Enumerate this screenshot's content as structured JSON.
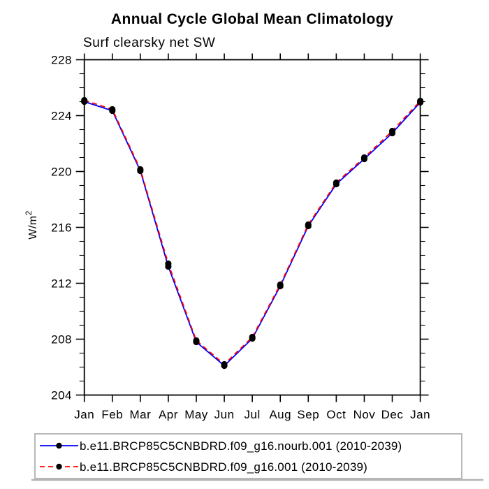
{
  "title": "Annual Cycle Global Mean Climatology",
  "subtitle": "Surf clearsky net SW",
  "y_axis_title": {
    "base": "W/m",
    "sup": "2"
  },
  "chart_data": {
    "type": "line",
    "categories": [
      "Jan",
      "Feb",
      "Mar",
      "Apr",
      "May",
      "Jun",
      "Jul",
      "Aug",
      "Sep",
      "Oct",
      "Nov",
      "Dec",
      "Jan"
    ],
    "title": "Annual Cycle Global Mean Climatology",
    "subtitle": "Surf clearsky net SW",
    "ylabel": "W/m^2",
    "xlabel": "",
    "ylim": [
      204,
      228
    ],
    "ytick_major": [
      204,
      208,
      212,
      216,
      220,
      224,
      228
    ],
    "ytick_minor_step": 1,
    "grid": false,
    "legend_position": "bottom-left-box",
    "series": [
      {
        "name": "b.e11.BRCP85C5CNBDRD.f09_g16.nourb.001 (2010-2039)",
        "color": "#0000ff",
        "line_style": "solid",
        "marker": "filled-black-circle",
        "values": [
          225.0,
          224.35,
          220.05,
          213.2,
          207.8,
          206.1,
          208.05,
          211.8,
          216.1,
          219.1,
          220.9,
          222.75,
          224.95
        ]
      },
      {
        "name": "b.e11.BRCP85C5CNBDRD.f09_g16.001 (2010-2039)",
        "color": "#ff0000",
        "line_style": "dashed",
        "marker": "filled-black-circle",
        "values": [
          225.1,
          224.45,
          220.15,
          213.4,
          207.9,
          206.2,
          208.15,
          211.9,
          216.2,
          219.2,
          221.0,
          222.9,
          225.05
        ]
      }
    ]
  },
  "colors": {
    "axis": "#000000",
    "marker": "#000000",
    "series_blue": "#0000ff",
    "series_red": "#ff0000",
    "legend_border": "#b0b0b0",
    "bottom_divider": "#b5b5b5"
  }
}
